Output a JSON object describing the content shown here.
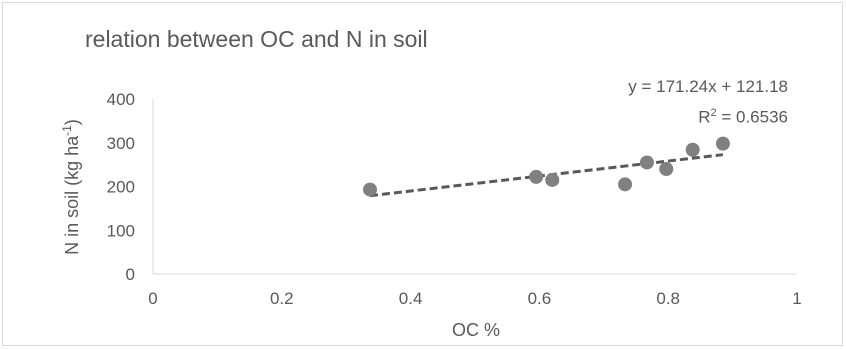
{
  "chart_data": {
    "type": "scatter",
    "title": "relation between OC and N in soil",
    "xlabel": "OC %",
    "ylabel": "N in soil (kg ha-1)",
    "ylabel_main": "N in soil (kg ha",
    "ylabel_sup": "-1",
    "ylabel_end": ")",
    "xlim": [
      0,
      1
    ],
    "ylim": [
      0,
      400
    ],
    "x_ticks": [
      0,
      0.2,
      0.4,
      0.6,
      0.8,
      1
    ],
    "x_tick_labels": [
      "0",
      "0.2",
      "0.4",
      "0.6",
      "0.8",
      "1"
    ],
    "y_ticks": [
      0,
      100,
      200,
      300,
      400
    ],
    "y_tick_labels": [
      "0",
      "100",
      "200",
      "300",
      "400"
    ],
    "grid": false,
    "series": [
      {
        "x": [
          0.337,
          0.595,
          0.62,
          0.733,
          0.767,
          0.797,
          0.838,
          0.885
        ],
        "y": [
          193,
          222,
          215,
          205,
          255,
          240,
          284,
          298
        ],
        "color": "#808080"
      }
    ],
    "trendline": {
      "slope": 171.24,
      "intercept": 121.18,
      "x_range": [
        0.337,
        0.885
      ],
      "style": "dashed",
      "color": "#595959",
      "equation_label": "y = 171.24x + 121.18",
      "r2_label_prefix": "R",
      "r2_label_sup": "2",
      "r2_label_value": " = 0.6536"
    }
  }
}
